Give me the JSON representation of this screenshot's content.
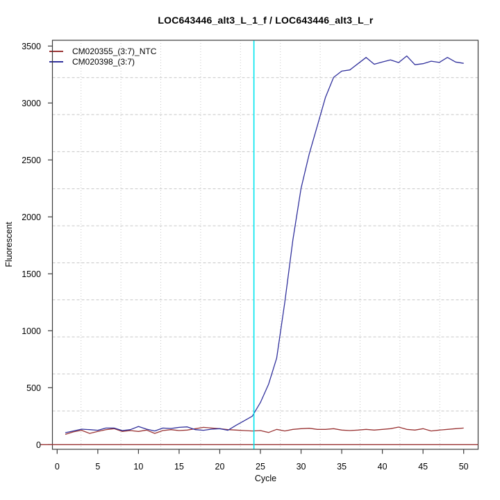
{
  "page": {
    "background": "#ffffff"
  },
  "chart_data": {
    "type": "line",
    "title": "LOC643446_alt3_L_1_f / LOC643446_alt3_L_r",
    "xlabel": "Cycle",
    "ylabel": "Fluorescent",
    "xlim": [
      0,
      50
    ],
    "ylim": [
      0,
      3500
    ],
    "x_ticks": [
      0,
      5,
      10,
      15,
      20,
      25,
      30,
      35,
      40,
      45,
      50
    ],
    "y_ticks": [
      0,
      500,
      1000,
      1500,
      2000,
      2500,
      3000,
      3500
    ],
    "grid": "light-gray dotted gridlines, not aligned to ticks",
    "legend_position": "top-left inside plot",
    "x": [
      1,
      2,
      3,
      4,
      5,
      6,
      7,
      8,
      9,
      10,
      11,
      12,
      13,
      14,
      15,
      16,
      17,
      18,
      19,
      20,
      21,
      22,
      23,
      24,
      25,
      26,
      27,
      28,
      29,
      30,
      31,
      32,
      33,
      34,
      35,
      36,
      37,
      38,
      39,
      40,
      41,
      42,
      43,
      44,
      45,
      46,
      47,
      48,
      49,
      50
    ],
    "series": [
      {
        "name": "CM020355_(3:7)_NTC",
        "color": "#9a3434",
        "values": [
          90,
          112,
          126,
          99,
          116,
          132,
          140,
          116,
          124,
          116,
          128,
          99,
          124,
          132,
          124,
          128,
          140,
          152,
          146,
          140,
          132,
          128,
          124,
          120,
          124,
          107,
          134,
          120,
          134,
          140,
          144,
          134,
          134,
          140,
          128,
          124,
          128,
          134,
          128,
          134,
          140,
          154,
          134,
          128,
          140,
          120,
          128,
          134,
          140,
          146
        ]
      },
      {
        "name": "CM020398_(3:7)",
        "color": "#30309c",
        "values": [
          105,
          120,
          136,
          132,
          126,
          146,
          146,
          124,
          132,
          160,
          136,
          120,
          146,
          142,
          152,
          156,
          132,
          126,
          136,
          140,
          126,
          170,
          210,
          250,
          370,
          530,
          760,
          1250,
          1800,
          2250,
          2550,
          2800,
          3050,
          3225,
          3280,
          3290,
          3345,
          3400,
          3340,
          3360,
          3378,
          3355,
          3413,
          3336,
          3345,
          3367,
          3356,
          3400,
          3360,
          3348
        ]
      }
    ],
    "threshold_line": {
      "y": 0,
      "color": "#9a3434"
    },
    "vertical_line": {
      "x": 24.2,
      "color": "#00e5ee"
    },
    "colors": {
      "grid": "#c6c6c6",
      "axis": "#3a3a3a",
      "text": "#000000"
    }
  }
}
